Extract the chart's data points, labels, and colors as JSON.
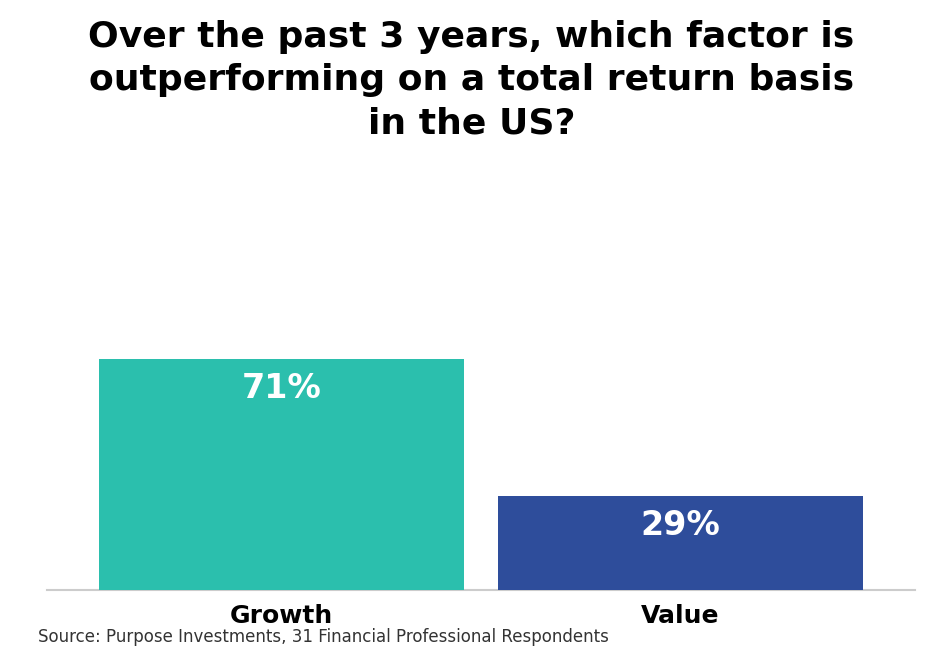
{
  "categories": [
    "Growth",
    "Value"
  ],
  "values": [
    71,
    29
  ],
  "bar_colors": [
    "#2bbfad",
    "#2e4d9b"
  ],
  "label_texts": [
    "71%",
    "29%"
  ],
  "title": "Over the past 3 years, which factor is\noutperforming on a total return basis\nin the US?",
  "source_text": "Source: Purpose Investments, 31 Financial Professional Respondents",
  "background_color": "#ffffff",
  "title_fontsize": 26,
  "label_fontsize": 24,
  "xlabel_fontsize": 18,
  "source_fontsize": 12,
  "bar_label_color": "#ffffff",
  "xlabel_color": "#000000",
  "title_color": "#000000",
  "ylim": [
    0,
    100
  ],
  "bar_width": 0.42,
  "x_positions": [
    0.27,
    0.73
  ]
}
